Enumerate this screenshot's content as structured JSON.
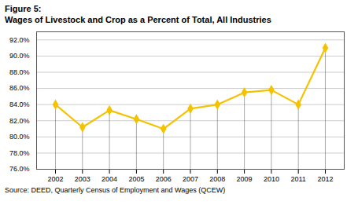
{
  "chart_data": {
    "type": "line",
    "title": "Figure 5:",
    "subtitle": "Wages of Livestock and Crop as a Percent of Total, All Industries",
    "caption": "Source: DEED, Quarterly Census of Employment and Wages (QCEW)",
    "x": [
      2002,
      2003,
      2004,
      2005,
      2006,
      2007,
      2008,
      2009,
      2010,
      2011,
      2012
    ],
    "values": [
      0.84,
      0.812,
      0.833,
      0.822,
      0.81,
      0.835,
      0.84,
      0.855,
      0.858,
      0.84,
      0.91
    ],
    "color": "#F5C200",
    "marker": "diamond",
    "xlim": [
      2001.3,
      2012.7
    ],
    "xticks": [
      2002,
      2003,
      2004,
      2005,
      2006,
      2007,
      2008,
      2009,
      2010,
      2011,
      2012
    ],
    "ylim": [
      0.76,
      0.93
    ],
    "yticks": [
      {
        "value": 0.76,
        "label": "76.0%"
      },
      {
        "value": 0.78,
        "label": "78.0%"
      },
      {
        "value": 0.8,
        "label": "80.0%"
      },
      {
        "value": 0.82,
        "label": "82.0%"
      },
      {
        "value": 0.84,
        "label": "84.0%"
      },
      {
        "value": 0.86,
        "label": "86.0%"
      },
      {
        "value": 0.88,
        "label": "88.0%"
      },
      {
        "value": 0.9,
        "label": "90.0%"
      },
      {
        "value": 0.92,
        "label": "92.0%"
      }
    ],
    "grid": true
  }
}
